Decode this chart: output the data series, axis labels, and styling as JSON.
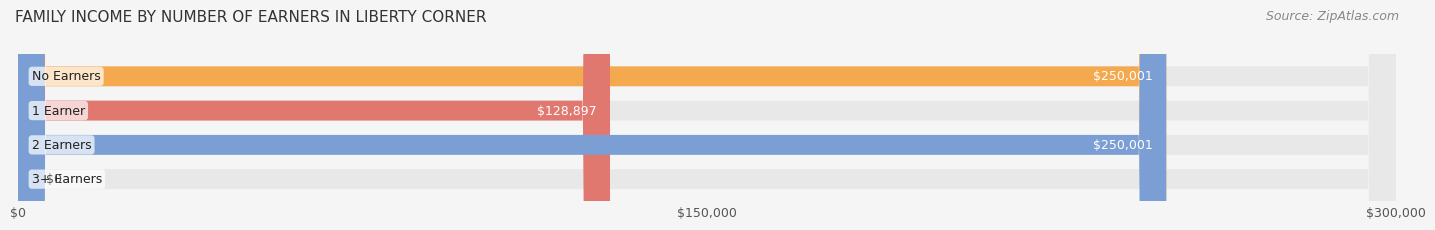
{
  "title": "FAMILY INCOME BY NUMBER OF EARNERS IN LIBERTY CORNER",
  "source": "Source: ZipAtlas.com",
  "categories": [
    "No Earners",
    "1 Earner",
    "2 Earners",
    "3+ Earners"
  ],
  "values": [
    250001,
    128897,
    250001,
    0
  ],
  "bar_colors": [
    "#F5A94E",
    "#E07870",
    "#7B9FD4",
    "#B8A0C8"
  ],
  "bar_labels": [
    "$250,001",
    "$128,897",
    "$250,001",
    "$0"
  ],
  "label_colors_inside": [
    "#ffffff",
    "#555555",
    "#ffffff",
    "#555555"
  ],
  "xlim": [
    0,
    300000
  ],
  "xtick_values": [
    0,
    150000,
    300000
  ],
  "xtick_labels": [
    "$0",
    "$150,000",
    "$300,000"
  ],
  "background_color": "#f5f5f5",
  "bar_background_color": "#e8e8e8",
  "title_fontsize": 11,
  "source_fontsize": 9,
  "label_fontsize": 9,
  "bar_height": 0.58
}
